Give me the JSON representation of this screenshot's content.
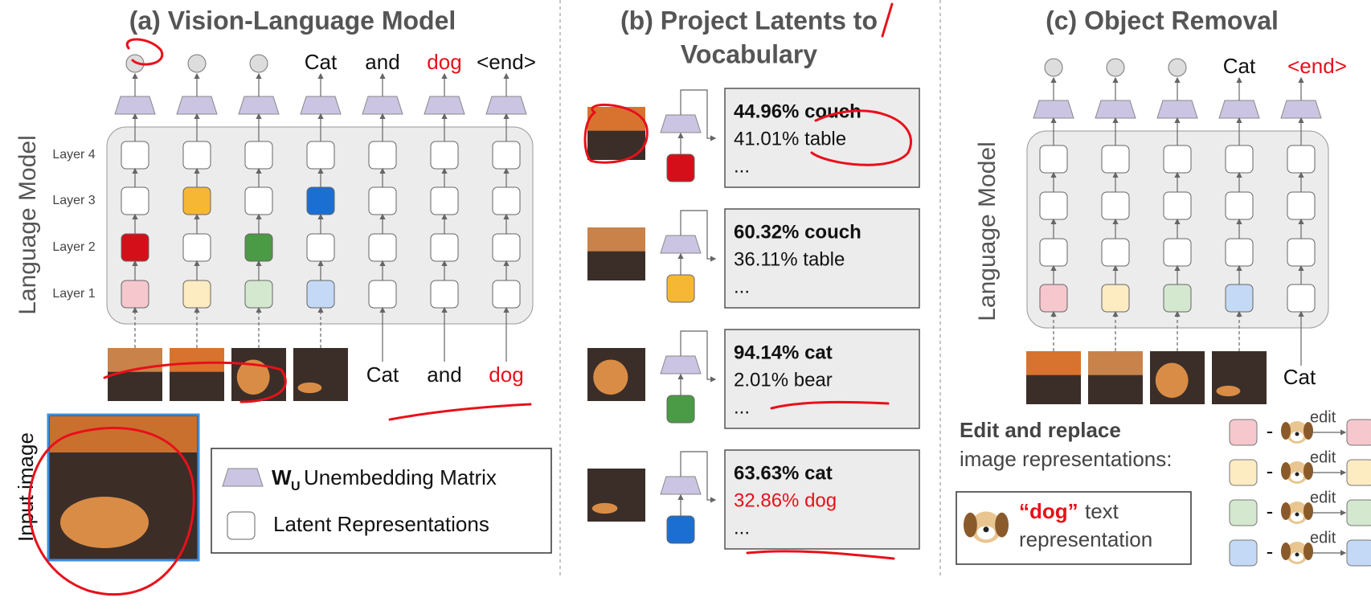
{
  "panel_a": {
    "title": "(a) Vision-Language Model",
    "side_label": "Language Model",
    "output_tokens": [
      "Cat",
      "and",
      "dog",
      "<end>"
    ],
    "layers": [
      "Layer 4",
      "Layer 3",
      "Layer 2",
      "Layer 1"
    ],
    "input_tokens": [
      "Cat",
      "and",
      "dog"
    ],
    "input_image_label": "Input image",
    "legend": {
      "matrix_symbol": "W",
      "matrix_subscript": "U",
      "matrix_label": "Unembedding Matrix",
      "latent_label": "Latent Representations"
    }
  },
  "panel_b": {
    "title_lines": [
      "(b) Project Latents to",
      "Vocabulary"
    ],
    "entries": [
      {
        "lines": [
          "44.96% couch",
          "41.01% table",
          "..."
        ]
      },
      {
        "lines": [
          "60.32% couch",
          "36.11% table",
          "..."
        ]
      },
      {
        "lines": [
          "94.14% cat",
          "2.01% bear",
          "..."
        ]
      },
      {
        "lines": [
          "63.63% cat",
          "32.86% dog",
          "..."
        ]
      }
    ]
  },
  "panel_c": {
    "title": "(c) Object Removal",
    "side_label": "Language Model",
    "output_tokens": [
      "Cat",
      "<end>"
    ],
    "input_tokens": [
      "Cat"
    ],
    "edit_heading": "Edit and replace",
    "edit_subheading": "image representations:",
    "edit_rows": [
      {
        "minus": "-",
        "edit": "edit"
      },
      {
        "minus": "-",
        "edit": "edit"
      },
      {
        "minus": "-",
        "edit": "edit"
      },
      {
        "minus": "-",
        "edit": "edit"
      }
    ],
    "dog_note": {
      "quoted": "“dog”",
      "line1": "text",
      "line2": "representation"
    }
  }
}
